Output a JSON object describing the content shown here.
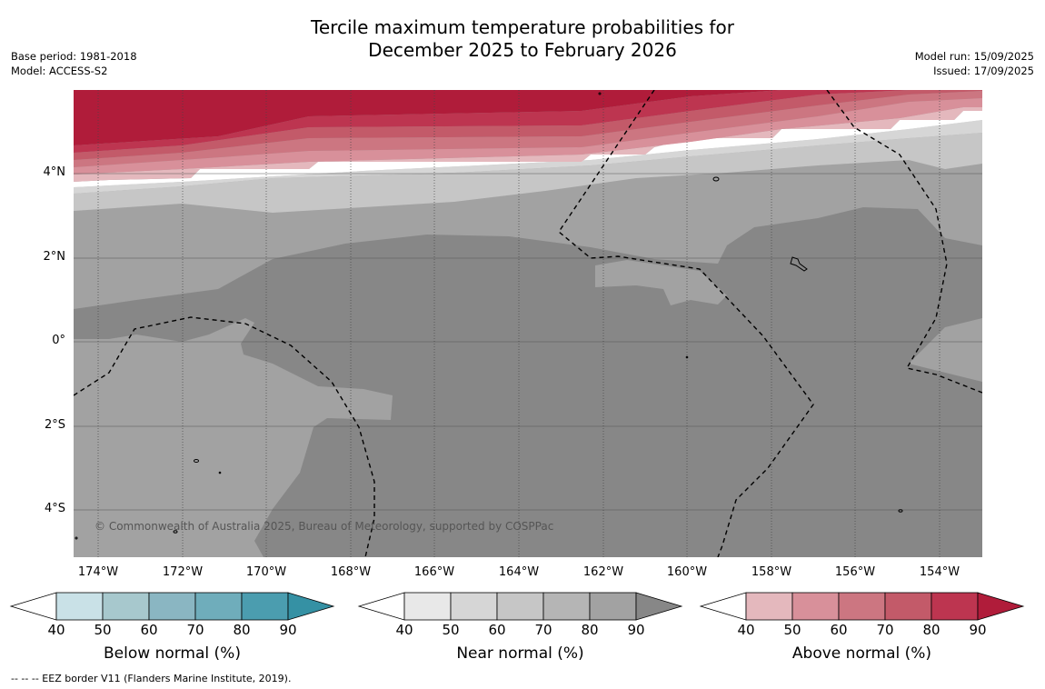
{
  "title": {
    "line1": "Tercile maximum temperature probabilities for",
    "line2": "December 2025 to February 2026"
  },
  "meta": {
    "base_period": "Base period: 1981-2018",
    "model": "Model: ACCESS-S2",
    "model_run": "Model run: 15/09/2025",
    "issued": "Issued: 17/09/2025"
  },
  "axes": {
    "lat_labels": [
      "4°N",
      "2°N",
      "0°",
      "2°S",
      "4°S"
    ],
    "lon_labels": [
      "174°W",
      "172°W",
      "170°W",
      "168°W",
      "166°W",
      "164°W",
      "162°W",
      "160°W",
      "158°W",
      "156°W",
      "154°W"
    ]
  },
  "copyright": "© Commonwealth of Australia 2025, Bureau of Meteorology, supported by COSPPac",
  "colorbars": [
    {
      "label": "Below normal (%)",
      "ticks": [
        "40",
        "50",
        "60",
        "70",
        "80",
        "90"
      ],
      "colors": [
        "#ffffff",
        "#c9e1e7",
        "#a7c8cd",
        "#8ab6c2",
        "#6fadbb",
        "#4b9daf",
        "#3591a4"
      ]
    },
    {
      "label": "Near normal (%)",
      "ticks": [
        "40",
        "50",
        "60",
        "70",
        "80",
        "90"
      ],
      "colors": [
        "#ffffff",
        "#e8e8e8",
        "#d6d6d6",
        "#c6c6c6",
        "#b5b5b5",
        "#a2a2a2",
        "#878787"
      ]
    },
    {
      "label": "Above normal (%)",
      "ticks": [
        "40",
        "50",
        "60",
        "70",
        "80",
        "90"
      ],
      "colors": [
        "#ffffff",
        "#e4b8bd",
        "#d8909a",
        "#cc7681",
        "#c35a69",
        "#bd3550",
        "#b01c3a"
      ]
    }
  ],
  "footnote": "--  --  -- EEZ border V11 (Flanders Marine Institute, 2019)."
}
